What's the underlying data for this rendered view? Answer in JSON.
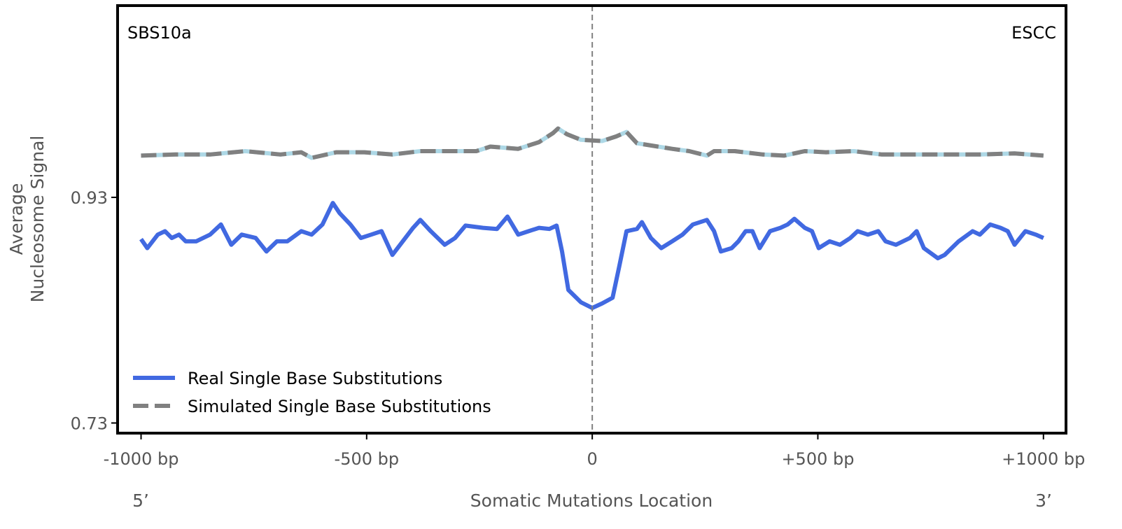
{
  "chart_data": {
    "type": "line",
    "title": "",
    "signature_label": "SBS10a",
    "cancer_type_label": "ESCC",
    "xlabel": "Somatic Mutations Location",
    "ylabel_lines": [
      "Average",
      "Nucleosome Signal"
    ],
    "x_end_labels": {
      "left": "5’",
      "right": "3’"
    },
    "xlim": [
      -1052,
      1050
    ],
    "ylim": [
      0.721,
      1.1
    ],
    "xticks": [
      -1000,
      -500,
      0,
      500,
      1000
    ],
    "xtick_labels": [
      "-1000 bp",
      "-500 bp",
      "0",
      "+500 bp",
      "+1000 bp"
    ],
    "yticks": [
      0.73,
      0.93
    ],
    "ytick_labels": [
      "0.73",
      "0.93"
    ],
    "vline_x": 0,
    "legend_placement": "lower-left",
    "grid": false,
    "colors": {
      "real": "#4169e1",
      "simulated": "#808080",
      "simulated_under": "#add8e6",
      "vline": "#808080"
    },
    "series": [
      {
        "name": "Real Single Base Substitutions",
        "x": [
          -1000,
          -986,
          -963,
          -947,
          -932,
          -916,
          -901,
          -878,
          -847,
          -823,
          -800,
          -777,
          -746,
          -722,
          -699,
          -676,
          -645,
          -622,
          -598,
          -575,
          -560,
          -536,
          -513,
          -490,
          -467,
          -443,
          -420,
          -397,
          -381,
          -358,
          -327,
          -304,
          -281,
          -242,
          -211,
          -188,
          -164,
          -141,
          -118,
          -95,
          -79,
          -67,
          -53,
          -25,
          0,
          22,
          45,
          60,
          76,
          99,
          110,
          130,
          153,
          177,
          200,
          223,
          254,
          270,
          285,
          309,
          324,
          340,
          355,
          371,
          394,
          417,
          433,
          448,
          471,
          487,
          502,
          526,
          549,
          572,
          588,
          611,
          634,
          650,
          673,
          704,
          719,
          735,
          766,
          781,
          812,
          843,
          859,
          882,
          905,
          921,
          936,
          960,
          983,
          1000
        ],
        "y": [
          0.893,
          0.885,
          0.897,
          0.9,
          0.894,
          0.897,
          0.891,
          0.891,
          0.897,
          0.906,
          0.888,
          0.897,
          0.894,
          0.882,
          0.891,
          0.891,
          0.9,
          0.897,
          0.906,
          0.925,
          0.916,
          0.906,
          0.894,
          0.897,
          0.9,
          0.879,
          0.891,
          0.903,
          0.91,
          0.9,
          0.888,
          0.894,
          0.905,
          0.903,
          0.902,
          0.913,
          0.897,
          0.9,
          0.903,
          0.902,
          0.905,
          0.882,
          0.848,
          0.837,
          0.832,
          0.836,
          0.841,
          0.869,
          0.9,
          0.902,
          0.908,
          0.894,
          0.885,
          0.891,
          0.897,
          0.906,
          0.91,
          0.9,
          0.882,
          0.885,
          0.891,
          0.9,
          0.9,
          0.885,
          0.9,
          0.903,
          0.906,
          0.911,
          0.903,
          0.9,
          0.885,
          0.891,
          0.888,
          0.894,
          0.9,
          0.897,
          0.9,
          0.891,
          0.888,
          0.894,
          0.9,
          0.885,
          0.876,
          0.879,
          0.891,
          0.9,
          0.897,
          0.906,
          0.903,
          0.9,
          0.888,
          0.9,
          0.897,
          0.894
        ]
      },
      {
        "name": "Simulated Single Base Substitutions",
        "x": [
          -1000,
          -924,
          -847,
          -769,
          -691,
          -645,
          -622,
          -567,
          -505,
          -443,
          -381,
          -304,
          -257,
          -226,
          -164,
          -118,
          -87,
          -76,
          -56,
          -25,
          22,
          53,
          76,
          99,
          177,
          215,
          254,
          270,
          316,
          378,
          425,
          471,
          518,
          580,
          642,
          704,
          781,
          859,
          936,
          1000
        ],
        "y": [
          0.967,
          0.968,
          0.968,
          0.971,
          0.968,
          0.97,
          0.965,
          0.97,
          0.97,
          0.968,
          0.971,
          0.971,
          0.971,
          0.975,
          0.973,
          0.979,
          0.987,
          0.991,
          0.986,
          0.981,
          0.98,
          0.984,
          0.988,
          0.978,
          0.973,
          0.971,
          0.967,
          0.971,
          0.971,
          0.968,
          0.967,
          0.971,
          0.97,
          0.971,
          0.968,
          0.968,
          0.968,
          0.968,
          0.969,
          0.967
        ]
      }
    ]
  }
}
